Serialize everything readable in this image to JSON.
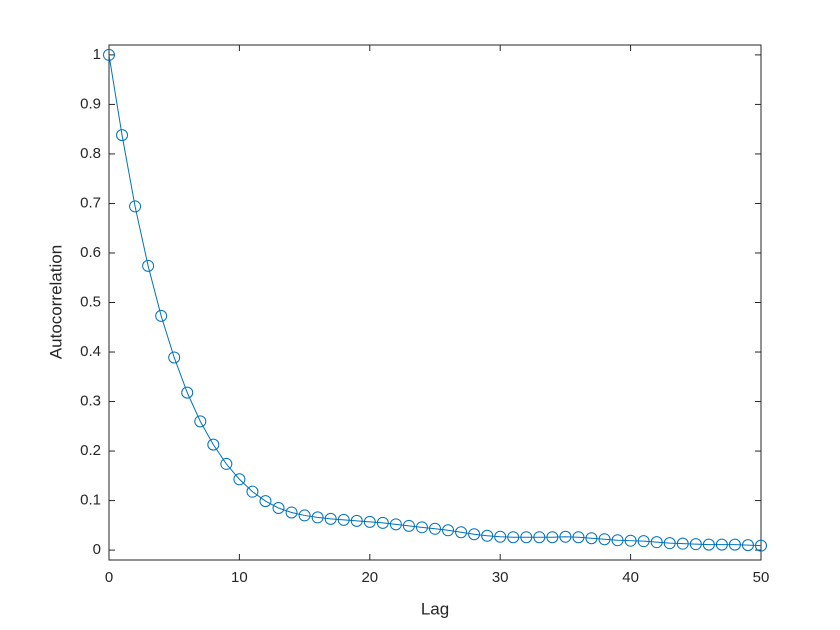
{
  "chart_data": {
    "type": "line",
    "xlabel": "Lag",
    "ylabel": "Autocorrelation",
    "x": [
      0,
      1,
      2,
      3,
      4,
      5,
      6,
      7,
      8,
      9,
      10,
      11,
      12,
      13,
      14,
      15,
      16,
      17,
      18,
      19,
      20,
      21,
      22,
      23,
      24,
      25,
      26,
      27,
      28,
      29,
      30,
      31,
      32,
      33,
      34,
      35,
      36,
      37,
      38,
      39,
      40,
      41,
      42,
      43,
      44,
      45,
      46,
      47,
      48,
      49,
      50
    ],
    "values": [
      1,
      0.838,
      0.694,
      0.574,
      0.473,
      0.389,
      0.318,
      0.26,
      0.213,
      0.174,
      0.143,
      0.118,
      0.099,
      0.085,
      0.076,
      0.07,
      0.066,
      0.063,
      0.061,
      0.059,
      0.057,
      0.055,
      0.052,
      0.049,
      0.046,
      0.043,
      0.04,
      0.036,
      0.032,
      0.029,
      0.027,
      0.026,
      0.026,
      0.026,
      0.026,
      0.027,
      0.026,
      0.024,
      0.022,
      0.02,
      0.019,
      0.018,
      0.016,
      0.014,
      0.013,
      0.012,
      0.011,
      0.011,
      0.011,
      0.01,
      0.009
    ],
    "color": "#0072bd",
    "xlim": [
      0,
      50
    ],
    "xticks": [
      0,
      10,
      20,
      30,
      40,
      50
    ],
    "ylim": [
      -0.02,
      1.02
    ],
    "yticks": [
      0,
      0.1,
      0.2,
      0.3,
      0.4,
      0.5,
      0.6,
      0.7,
      0.8,
      0.9,
      1
    ],
    "grid": false
  }
}
